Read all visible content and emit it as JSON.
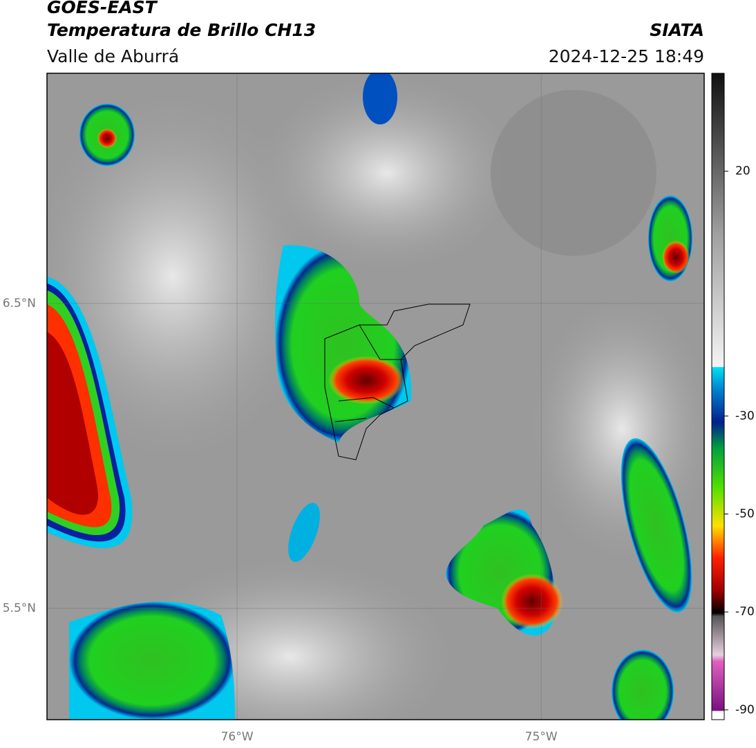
{
  "header": {
    "satellite": "GOES-EAST",
    "product": "Temperatura de Brillo CH13",
    "source": "SIATA",
    "region": "Valle de Aburrá",
    "datetime": "2024-12-25 18:49"
  },
  "map": {
    "lonlim": [
      -76.625,
      -74.464
    ],
    "latlim": [
      5.135,
      7.255
    ],
    "lonticks": [
      {
        "value": -76,
        "label": "76°W"
      },
      {
        "value": -75,
        "label": "75°W"
      }
    ],
    "latticks": [
      {
        "value": 6.5,
        "label": "6.5°N"
      },
      {
        "value": 5.5,
        "label": "5.5°N"
      }
    ]
  },
  "colorbar": {
    "lim": [
      -92,
      40
    ],
    "ticks": [
      20,
      -30,
      -50,
      -70,
      -90
    ]
  }
}
